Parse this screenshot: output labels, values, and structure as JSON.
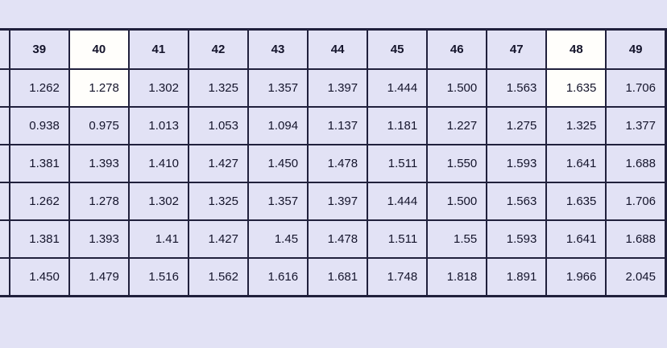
{
  "page": {
    "background_color": "#e2e2f5",
    "border_color": "#20203c",
    "text_color": "#14142b",
    "highlight_color": "#fffefb"
  },
  "chart_data": {
    "type": "table",
    "columns": [
      "39",
      "40",
      "41",
      "42",
      "43",
      "44",
      "45",
      "46",
      "47",
      "48",
      "49"
    ],
    "rows": [
      [
        "1.262",
        "1.278",
        "1.302",
        "1.325",
        "1.357",
        "1.397",
        "1.444",
        "1.500",
        "1.563",
        "1.635",
        "1.706"
      ],
      [
        "0.938",
        "0.975",
        "1.013",
        "1.053",
        "1.094",
        "1.137",
        "1.181",
        "1.227",
        "1.275",
        "1.325",
        "1.377"
      ],
      [
        "1.381",
        "1.393",
        "1.410",
        "1.427",
        "1.450",
        "1.478",
        "1.511",
        "1.550",
        "1.593",
        "1.641",
        "1.688"
      ],
      [
        "1.262",
        "1.278",
        "1.302",
        "1.325",
        "1.357",
        "1.397",
        "1.444",
        "1.500",
        "1.563",
        "1.635",
        "1.706"
      ],
      [
        "1.381",
        "1.393",
        "1.41",
        "1.427",
        "1.45",
        "1.478",
        "1.511",
        "1.55",
        "1.593",
        "1.641",
        "1.688"
      ],
      [
        "1.450",
        "1.479",
        "1.516",
        "1.562",
        "1.616",
        "1.681",
        "1.748",
        "1.818",
        "1.891",
        "1.966",
        "2.045"
      ]
    ],
    "row_label_column": {
      "truncated_at_left_edge": true,
      "visible_text": ""
    },
    "highlight": {
      "columns": [
        "40",
        "48"
      ],
      "applies_to": [
        "header",
        "first_data_row"
      ],
      "color": "#fffefb"
    },
    "layout": {
      "grid": "all-borders",
      "header_alignment": "center",
      "value_alignment": "right"
    }
  }
}
